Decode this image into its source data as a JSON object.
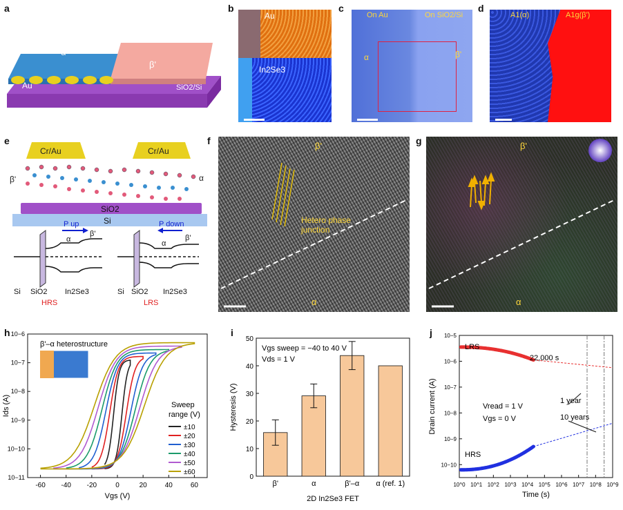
{
  "panels": {
    "a": {
      "label": "a",
      "alpha": "α",
      "beta": "β'",
      "au": "Au",
      "substrate": "SiO2/Si"
    },
    "b": {
      "label": "b",
      "au": "Au",
      "in2se3": "In2Se3"
    },
    "c": {
      "label": "c",
      "on_au": "On Au",
      "on_sio2": "On SiO2/Si",
      "alpha": "α",
      "beta": "β'"
    },
    "d": {
      "label": "d",
      "a1": "A1(α)",
      "alg": "A1g(β')"
    },
    "e": {
      "label": "e",
      "contact_left": "Cr/Au",
      "contact_right": "Cr/Au",
      "beta": "β'",
      "alpha": "α",
      "sio2": "SiO2",
      "si": "Si",
      "p_up": "P up",
      "p_down": "P down",
      "hrs": "HRS",
      "lrs": "LRS",
      "layer_si": "Si",
      "layer_sio2": "SiO2",
      "layer_in2se3": "In2Se3"
    },
    "f": {
      "label": "f",
      "beta": "β'",
      "alpha": "α",
      "junction": "Hetero phase junction"
    },
    "g": {
      "label": "g",
      "beta": "β'",
      "alpha": "α"
    },
    "h": {
      "label": "h",
      "inset_title": "β'–α heterostructure",
      "legend_title_1": "Sweep",
      "legend_title_2": "range (V)"
    },
    "i": {
      "label": "i",
      "sweep_note": "Vgs sweep = −40 to 40 V",
      "vds_note": "Vds = 1 V",
      "xlabel": "2D In2Se3 FET"
    },
    "j": {
      "label": "j",
      "lrs": "LRS",
      "hrs": "HRS",
      "time_note": "22,000 s",
      "one_year": "1 year",
      "ten_years": "10 years",
      "vread": "Vread = 1 V",
      "vgs": "Vgs = 0 V"
    }
  },
  "colors": {
    "sio2": "#a050c8",
    "alpha_film": "#3a8fd0",
    "beta_film": "#f4a9a0",
    "gold": "#e8d020",
    "bar": "#f7c89a",
    "lrs": "#e83030",
    "hrs": "#2030e0"
  },
  "chart_data": [
    {
      "type": "line",
      "panel": "h",
      "xlabel": "Vgs (V)",
      "ylabel": "Ids (A)",
      "xlim": [
        -70,
        70
      ],
      "ylim_log10": [
        -11,
        -6
      ],
      "xticks": [
        -60,
        -40,
        -20,
        0,
        20,
        40,
        60
      ],
      "yticks": [
        "10−11",
        "10−10",
        "10−9",
        "10−8",
        "10−7",
        "10−6"
      ],
      "series": [
        {
          "name": "±10",
          "color": "#222222",
          "range": 10
        },
        {
          "name": "±20",
          "color": "#e02020",
          "range": 20
        },
        {
          "name": "±30",
          "color": "#1f5fd0",
          "range": 30
        },
        {
          "name": "±40",
          "color": "#1a9a6a",
          "range": 40
        },
        {
          "name": "±50",
          "color": "#b05ad0",
          "range": 50
        },
        {
          "name": "±60",
          "color": "#b8a000",
          "range": 60
        }
      ]
    },
    {
      "type": "bar",
      "panel": "i",
      "categories": [
        "β'",
        "α",
        "β'–α",
        "α (ref. 1)"
      ],
      "values": [
        15.8,
        29.1,
        43.7,
        40.0
      ],
      "errors": [
        4.6,
        4.3,
        5.1,
        0
      ],
      "ylabel": "Hysteresis (V)",
      "ylim": [
        0,
        50
      ],
      "yticks": [
        0,
        10,
        20,
        30,
        40,
        50
      ]
    },
    {
      "type": "scatter",
      "panel": "j",
      "xlabel": "Time (s)",
      "ylabel": "Drain current (A)",
      "xlim_log10": [
        0,
        9
      ],
      "ylim_log10": [
        -10.5,
        -5
      ],
      "xticks": [
        "10^0",
        "10^1",
        "10^2",
        "10^3",
        "10^4",
        "10^5",
        "10^6",
        "10^7",
        "10^8",
        "10^9"
      ],
      "yticks": [
        "10−10",
        "10−9",
        "10−8",
        "10−7",
        "10−6",
        "10−5"
      ],
      "series": [
        {
          "name": "LRS",
          "start_log": -5.45,
          "end_log": -5.95,
          "extrap_end_log": -6.25
        },
        {
          "name": "HRS",
          "start_log": -10.2,
          "end_log": -9.3,
          "extrap_end_log": -8.4
        }
      ]
    }
  ]
}
